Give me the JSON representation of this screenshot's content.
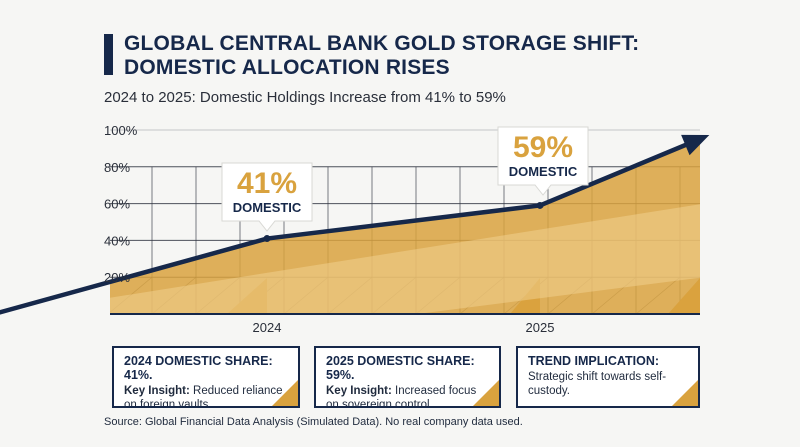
{
  "header": {
    "title": "GLOBAL CENTRAL BANK GOLD STORAGE SHIFT:\nDOMESTIC ALLOCATION RISES",
    "subtitle": "2024 to 2025: Domestic Holdings Increase from 41% to 59%"
  },
  "chart_data": {
    "type": "area",
    "title": "GLOBAL CENTRAL BANK GOLD STORAGE SHIFT: DOMESTIC ALLOCATION RISES",
    "subtitle": "2024 to 2025: Domestic Holdings Increase from 41% to 59%",
    "x_ticks": [
      "2024",
      "2025"
    ],
    "y_ticks": [
      "20%",
      "40%",
      "60%",
      "80%",
      "100%"
    ],
    "ylim": [
      0,
      100
    ],
    "grid": true,
    "series": [
      {
        "name": "Domestic share",
        "points": [
          {
            "x": 2023.0,
            "y": 0
          },
          {
            "x": 2024.0,
            "y": 41
          },
          {
            "x": 2025.0,
            "y": 59
          },
          {
            "x": 2025.6,
            "y": 96
          }
        ]
      }
    ],
    "callouts": [
      {
        "x": "2024",
        "value": "41%",
        "label": "DOMESTIC"
      },
      {
        "x": "2025",
        "value": "59%",
        "label": "DOMESTIC"
      }
    ],
    "colors": {
      "line": "#16284a",
      "fill": "#d9a23e",
      "fill_light": "#f0cf8e",
      "grid": "#2f3440"
    }
  },
  "cards": [
    {
      "head": "2024 DOMESTIC SHARE: 41%.",
      "key": "Key Insight:",
      "text": " Reduced reliance on foreign vaults."
    },
    {
      "head": "2025 DOMESTIC SHARE: 59%.",
      "key": "Key Insight:",
      "text": " Increased focus on sovereign control."
    },
    {
      "head": "TREND IMPLICATION:",
      "key": "",
      "text": "Strategic shift towards self-custody."
    }
  ],
  "footer": {
    "source": "Source: Global Financial Data Analysis (Simulated Data). No real company data used."
  }
}
